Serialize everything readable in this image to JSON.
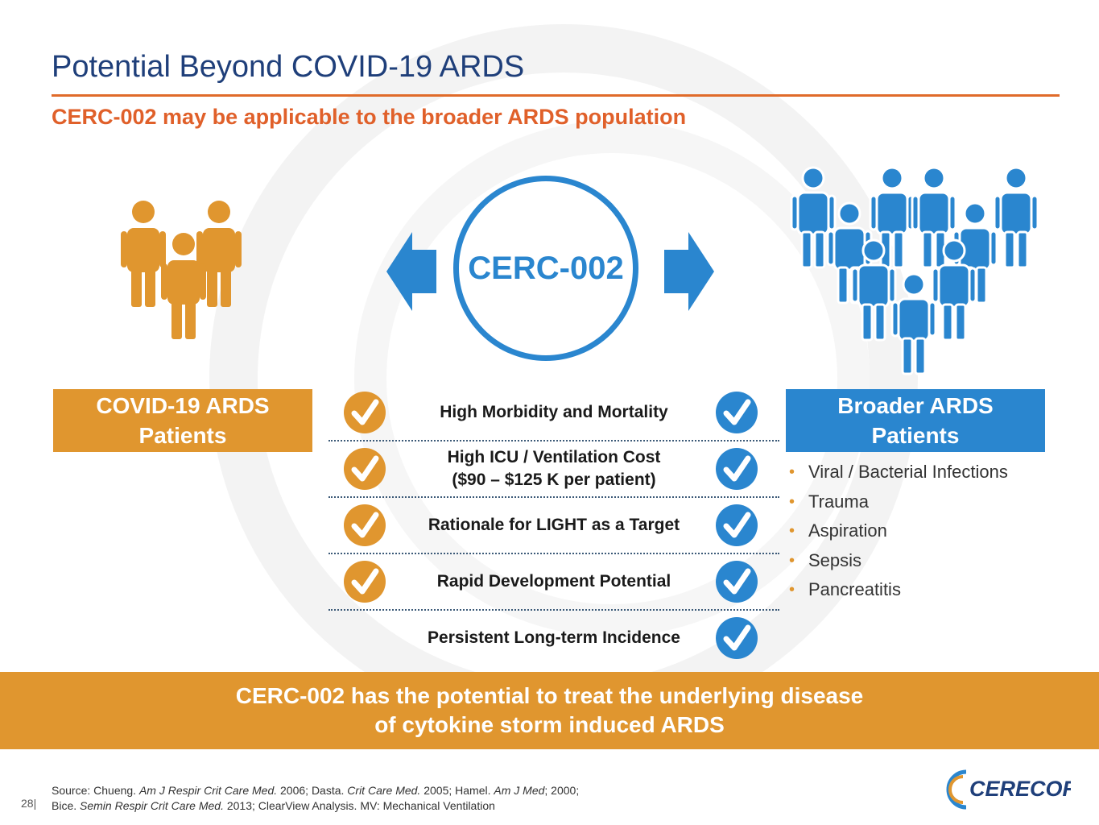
{
  "header": {
    "title": "Potential Beyond COVID-19 ARDS",
    "subtitle": "CERC-002 may be applicable to the broader ARDS population"
  },
  "center": {
    "label": "CERC-002"
  },
  "left_group": {
    "label_line1": "COVID-19 ARDS",
    "label_line2": "Patients",
    "icon_name": "people-group-icon",
    "color": "#e0962f"
  },
  "right_group": {
    "label_line1": "Broader ARDS",
    "label_line2": "Patients",
    "icon_name": "people-crowd-icon",
    "color": "#2a86cf",
    "bullets": [
      "Viral / Bacterial Infections",
      "Trauma",
      "Aspiration",
      "Sepsis",
      "Pancreatitis"
    ]
  },
  "criteria": [
    {
      "line1": "High Morbidity and Mortality",
      "line2": ""
    },
    {
      "line1": "High ICU / Ventilation Cost",
      "line2": "($90 – $125 K per patient)"
    },
    {
      "line1": "Rationale for LIGHT as a Target",
      "line2": ""
    },
    {
      "line1": "Rapid Development Potential",
      "line2": ""
    },
    {
      "line1": "Persistent Long-term Incidence",
      "line2": ""
    }
  ],
  "banner": {
    "line1": "CERC-002 has the potential to treat the underlying disease",
    "line2": "of cytokine storm induced ARDS"
  },
  "footer": {
    "page_number": "28|",
    "source_prefix": "Source: Chueng. ",
    "source_j1": "Am J Respir Crit Care Med.",
    "source_t1": " 2006; Dasta. ",
    "source_j2": "Crit Care Med.",
    "source_t2": " 2005; Hamel. ",
    "source_j3": "Am J Med",
    "source_t3": "; 2000;",
    "source_l2_prefix": "Bice. ",
    "source_j4": "Semin Respir Crit Care Med.",
    "source_t4": " 2013; ClearView Analysis. MV: Mechanical Ventilation",
    "logo_text": "CERECOR"
  },
  "colors": {
    "title": "#1f3f7a",
    "accent_orange": "#e0602a",
    "orange": "#e0962f",
    "blue": "#2a86cf"
  }
}
